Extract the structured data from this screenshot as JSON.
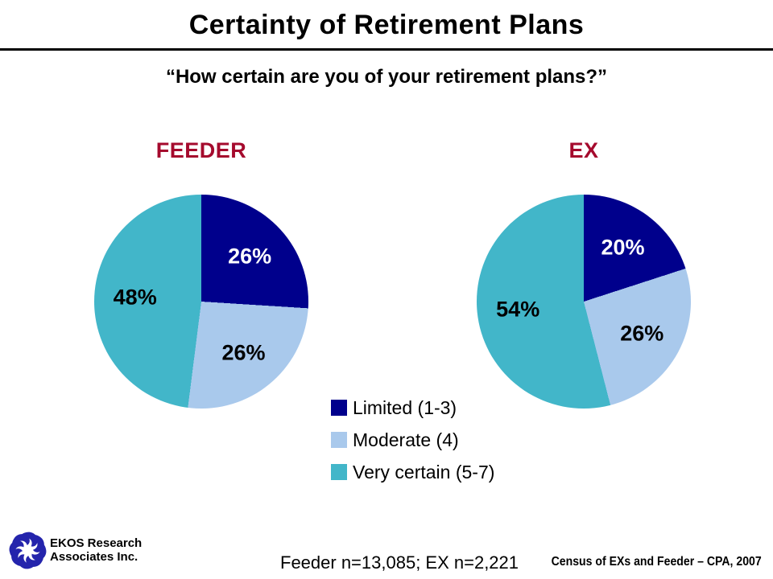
{
  "slide": {
    "title": "Certainty of Retirement Plans",
    "subtitle": "“How certain are you of your retirement plans?”"
  },
  "colors": {
    "limited_navy": "#00008C",
    "moderate_light_blue": "#A9C9EC",
    "very_certain_teal": "#42B6C9",
    "group_heading_red": "#A50A2D",
    "logo_blue": "#2424AC",
    "divider_black": "#000000"
  },
  "chart_data": [
    {
      "type": "pie",
      "title": "FEEDER",
      "labels": [
        "Limited (1-3)",
        "Moderate (4)",
        "Very certain (5-7)"
      ],
      "values": [
        26,
        26,
        48
      ],
      "unit": "%",
      "colors": [
        "#00008C",
        "#A9C9EC",
        "#42B6C9"
      ],
      "label_colors": [
        "#FFFFFF",
        "#000000",
        "#000000"
      ],
      "start_angle_deg": 0,
      "direction": "clockwise",
      "data_labels": "inside"
    },
    {
      "type": "pie",
      "title": "EX",
      "labels": [
        "Limited (1-3)",
        "Moderate (4)",
        "Very certain (5-7)"
      ],
      "values": [
        20,
        26,
        54
      ],
      "unit": "%",
      "colors": [
        "#00008C",
        "#A9C9EC",
        "#42B6C9"
      ],
      "label_colors": [
        "#FFFFFF",
        "#000000",
        "#000000"
      ],
      "start_angle_deg": 0,
      "direction": "clockwise",
      "data_labels": "inside"
    }
  ],
  "legend": {
    "position": "bottom-center",
    "items": [
      {
        "label": "Limited (1-3)",
        "color": "#00008C"
      },
      {
        "label": "Moderate (4)",
        "color": "#A9C9EC"
      },
      {
        "label": "Very certain (5-7)",
        "color": "#42B6C9"
      }
    ]
  },
  "footer": {
    "organization": {
      "line1": "EKOS Research",
      "line2": "Associates Inc."
    },
    "logo_icon": "ekos-swirl-icon",
    "sample_note": "Feeder n=13,085; EX n=2,221",
    "source": "Census of EXs and Feeder – CPA, 2007"
  }
}
